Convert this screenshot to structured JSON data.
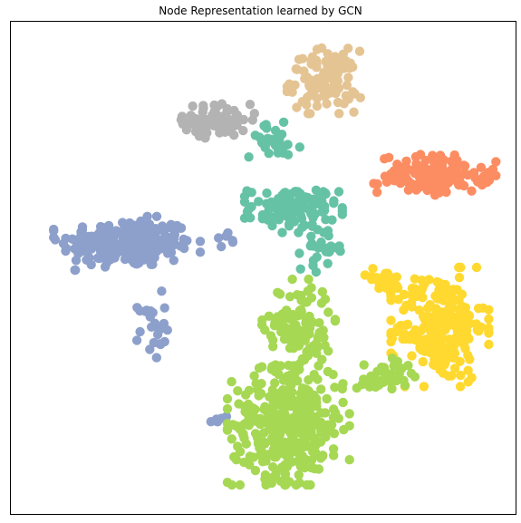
{
  "chart_data": {
    "type": "scatter",
    "title": "Node Representation learned by GCN",
    "xlabel": "",
    "ylabel": "",
    "xlim": [
      0,
      100
    ],
    "ylim": [
      0,
      100
    ],
    "grid": false,
    "axis_ticks": false,
    "legend": "none",
    "marker": "circle",
    "series": [
      {
        "color": "#8da0cb",
        "clusters": [
          {
            "cx": 23,
            "cy": 55,
            "rx": 12,
            "ry": 4.5,
            "n": 240
          },
          {
            "cx": 28,
            "cy": 38,
            "rx": 2.5,
            "ry": 6,
            "n": 25
          },
          {
            "cx": 41,
            "cy": 19,
            "rx": 2,
            "ry": 1.5,
            "n": 6
          },
          {
            "cx": 43,
            "cy": 56,
            "rx": 2,
            "ry": 4,
            "n": 6
          }
        ]
      },
      {
        "color": "#b3b3b3",
        "clusters": [
          {
            "cx": 41,
            "cy": 80,
            "rx": 6,
            "ry": 3,
            "n": 75
          }
        ]
      },
      {
        "color": "#e5c494",
        "clusters": [
          {
            "cx": 62,
            "cy": 88,
            "rx": 6,
            "ry": 5.5,
            "n": 110
          }
        ]
      },
      {
        "color": "#fc8d62",
        "clusters": [
          {
            "cx": 84,
            "cy": 69,
            "rx": 10,
            "ry": 3.5,
            "n": 140
          }
        ]
      },
      {
        "color": "#66c2a5",
        "clusters": [
          {
            "cx": 56,
            "cy": 62,
            "rx": 8,
            "ry": 4,
            "n": 120
          },
          {
            "cx": 52,
            "cy": 76,
            "rx": 5,
            "ry": 3,
            "n": 30
          },
          {
            "cx": 62,
            "cy": 54,
            "rx": 4,
            "ry": 4,
            "n": 28
          }
        ]
      },
      {
        "color": "#ffd92f",
        "clusters": [
          {
            "cx": 85,
            "cy": 38,
            "rx": 8,
            "ry": 10,
            "n": 230
          },
          {
            "cx": 74,
            "cy": 47,
            "rx": 3.5,
            "ry": 2.5,
            "n": 25
          }
        ]
      },
      {
        "color": "#a6d854",
        "clusters": [
          {
            "cx": 55,
            "cy": 18,
            "rx": 10,
            "ry": 10,
            "n": 360
          },
          {
            "cx": 57,
            "cy": 38,
            "rx": 6,
            "ry": 8,
            "n": 120
          },
          {
            "cx": 74,
            "cy": 28,
            "rx": 5,
            "ry": 3,
            "n": 45
          }
        ]
      }
    ]
  }
}
